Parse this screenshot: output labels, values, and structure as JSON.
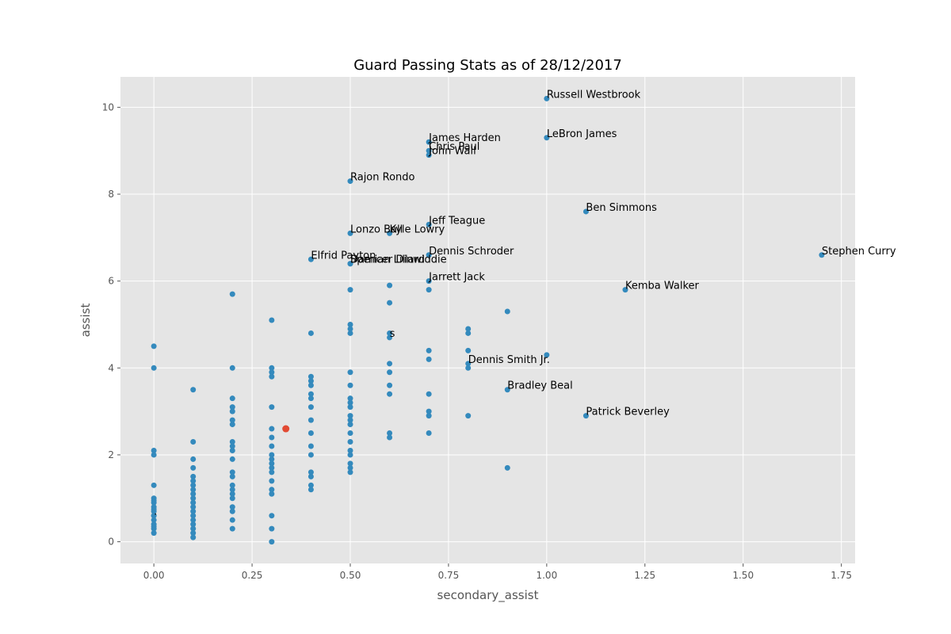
{
  "chart_data": {
    "type": "scatter",
    "title": "Guard Passing Stats as of 28/12/2017",
    "xlabel": "secondary_assist",
    "ylabel": "assist",
    "xlim": [
      -0.085,
      1.785
    ],
    "ylim": [
      -0.5,
      10.7
    ],
    "xticks": [
      0.0,
      0.25,
      0.5,
      0.75,
      1.0,
      1.25,
      1.5,
      1.75
    ],
    "xtick_labels": [
      "0.00",
      "0.25",
      "0.50",
      "0.75",
      "1.00",
      "1.25",
      "1.50",
      "1.75"
    ],
    "yticks": [
      0,
      2,
      4,
      6,
      8,
      10
    ],
    "ytick_labels": [
      "0",
      "2",
      "4",
      "6",
      "8",
      "10"
    ],
    "grid": true,
    "style": "ggplot",
    "colors": {
      "background": "#e5e5e5",
      "grid": "#ffffff",
      "point": "#348abd",
      "highlight": "#e24a33"
    },
    "labeled_points": [
      {
        "label": "Russell Westbrook",
        "x": 1.0,
        "y": 10.2
      },
      {
        "label": "LeBron James",
        "x": 1.0,
        "y": 9.3
      },
      {
        "label": "James Harden",
        "x": 0.7,
        "y": 9.2
      },
      {
        "label": "Chris Paul",
        "x": 0.7,
        "y": 9.0
      },
      {
        "label": "John Wall",
        "x": 0.7,
        "y": 8.9
      },
      {
        "label": "Rajon Rondo",
        "x": 0.5,
        "y": 8.3
      },
      {
        "label": "Ben Simmons",
        "x": 1.1,
        "y": 7.6
      },
      {
        "label": "Jeff Teague",
        "x": 0.7,
        "y": 7.3
      },
      {
        "label": "Lonzo Ball",
        "x": 0.5,
        "y": 7.1
      },
      {
        "label": "Kyle Lowry",
        "x": 0.6,
        "y": 7.1
      },
      {
        "label": "Elfrid Payton",
        "x": 0.4,
        "y": 6.5
      },
      {
        "label": "Dennis Schroder",
        "x": 0.7,
        "y": 6.6
      },
      {
        "label": "Stephen Curry",
        "x": 1.7,
        "y": 6.6
      },
      {
        "label": "Damian Lillard",
        "x": 0.5,
        "y": 6.4
      },
      {
        "label": "Spencer Dinwiddie",
        "x": 0.5,
        "y": 6.4
      },
      {
        "label": "Jarrett Jack",
        "x": 0.7,
        "y": 6.0
      },
      {
        "label": "Kemba Walker",
        "x": 1.2,
        "y": 5.8
      },
      {
        "label": "s",
        "x": 0.6,
        "y": 4.7
      },
      {
        "label": "Dennis Smith Jr.",
        "x": 0.8,
        "y": 4.1
      },
      {
        "label": "Bradley Beal",
        "x": 0.9,
        "y": 3.5
      },
      {
        "label": "Patrick Beverley",
        "x": 1.1,
        "y": 2.9
      },
      {
        "label": ".",
        "x": 0.0,
        "y": 0.6
      }
    ],
    "points": [
      [
        0.0,
        4.5
      ],
      [
        0.0,
        4.0
      ],
      [
        0.0,
        2.1
      ],
      [
        0.0,
        2.0
      ],
      [
        0.0,
        1.3
      ],
      [
        0.0,
        1.0
      ],
      [
        0.0,
        0.95
      ],
      [
        0.0,
        0.9
      ],
      [
        0.0,
        0.8
      ],
      [
        0.0,
        0.75
      ],
      [
        0.0,
        0.7
      ],
      [
        0.0,
        0.6
      ],
      [
        0.0,
        0.5
      ],
      [
        0.0,
        0.4
      ],
      [
        0.0,
        0.35
      ],
      [
        0.0,
        0.3
      ],
      [
        0.0,
        0.2
      ],
      [
        0.1,
        3.5
      ],
      [
        0.1,
        2.3
      ],
      [
        0.1,
        1.9
      ],
      [
        0.1,
        1.7
      ],
      [
        0.1,
        1.5
      ],
      [
        0.1,
        1.4
      ],
      [
        0.1,
        1.3
      ],
      [
        0.1,
        1.2
      ],
      [
        0.1,
        1.1
      ],
      [
        0.1,
        1.0
      ],
      [
        0.1,
        0.9
      ],
      [
        0.1,
        0.8
      ],
      [
        0.1,
        0.7
      ],
      [
        0.1,
        0.6
      ],
      [
        0.1,
        0.5
      ],
      [
        0.1,
        0.4
      ],
      [
        0.1,
        0.3
      ],
      [
        0.1,
        0.2
      ],
      [
        0.1,
        0.1
      ],
      [
        0.2,
        5.7
      ],
      [
        0.2,
        4.0
      ],
      [
        0.2,
        3.3
      ],
      [
        0.2,
        3.1
      ],
      [
        0.2,
        3.0
      ],
      [
        0.2,
        2.8
      ],
      [
        0.2,
        2.7
      ],
      [
        0.2,
        2.3
      ],
      [
        0.2,
        2.2
      ],
      [
        0.2,
        2.1
      ],
      [
        0.2,
        1.9
      ],
      [
        0.2,
        1.6
      ],
      [
        0.2,
        1.5
      ],
      [
        0.2,
        1.3
      ],
      [
        0.2,
        1.2
      ],
      [
        0.2,
        1.1
      ],
      [
        0.2,
        1.0
      ],
      [
        0.2,
        0.8
      ],
      [
        0.2,
        0.7
      ],
      [
        0.2,
        0.5
      ],
      [
        0.2,
        0.3
      ],
      [
        0.3,
        5.1
      ],
      [
        0.3,
        4.0
      ],
      [
        0.3,
        3.9
      ],
      [
        0.3,
        3.8
      ],
      [
        0.3,
        3.1
      ],
      [
        0.3,
        2.6
      ],
      [
        0.3,
        2.4
      ],
      [
        0.3,
        2.2
      ],
      [
        0.3,
        2.0
      ],
      [
        0.3,
        1.9
      ],
      [
        0.3,
        1.8
      ],
      [
        0.3,
        1.7
      ],
      [
        0.3,
        1.6
      ],
      [
        0.3,
        1.4
      ],
      [
        0.3,
        1.2
      ],
      [
        0.3,
        1.1
      ],
      [
        0.3,
        0.6
      ],
      [
        0.3,
        0.3
      ],
      [
        0.3,
        0.0
      ],
      [
        0.4,
        4.8
      ],
      [
        0.4,
        3.8
      ],
      [
        0.4,
        3.7
      ],
      [
        0.4,
        3.6
      ],
      [
        0.4,
        3.4
      ],
      [
        0.4,
        3.3
      ],
      [
        0.4,
        3.1
      ],
      [
        0.4,
        2.8
      ],
      [
        0.4,
        2.5
      ],
      [
        0.4,
        2.2
      ],
      [
        0.4,
        2.0
      ],
      [
        0.4,
        1.6
      ],
      [
        0.4,
        1.5
      ],
      [
        0.4,
        1.3
      ],
      [
        0.4,
        1.2
      ],
      [
        0.5,
        5.8
      ],
      [
        0.5,
        5.0
      ],
      [
        0.5,
        4.9
      ],
      [
        0.5,
        4.8
      ],
      [
        0.5,
        3.9
      ],
      [
        0.5,
        3.6
      ],
      [
        0.5,
        3.3
      ],
      [
        0.5,
        3.2
      ],
      [
        0.5,
        3.1
      ],
      [
        0.5,
        2.9
      ],
      [
        0.5,
        2.8
      ],
      [
        0.5,
        2.7
      ],
      [
        0.5,
        2.5
      ],
      [
        0.5,
        2.3
      ],
      [
        0.5,
        2.1
      ],
      [
        0.5,
        2.0
      ],
      [
        0.5,
        1.8
      ],
      [
        0.5,
        1.7
      ],
      [
        0.5,
        1.6
      ],
      [
        0.6,
        5.9
      ],
      [
        0.6,
        5.5
      ],
      [
        0.6,
        4.8
      ],
      [
        0.6,
        4.1
      ],
      [
        0.6,
        3.9
      ],
      [
        0.6,
        3.6
      ],
      [
        0.6,
        3.4
      ],
      [
        0.6,
        2.5
      ],
      [
        0.6,
        2.4
      ],
      [
        0.7,
        5.8
      ],
      [
        0.7,
        4.4
      ],
      [
        0.7,
        4.2
      ],
      [
        0.7,
        3.4
      ],
      [
        0.7,
        3.0
      ],
      [
        0.7,
        2.9
      ],
      [
        0.7,
        2.5
      ],
      [
        0.8,
        4.9
      ],
      [
        0.8,
        4.8
      ],
      [
        0.8,
        4.4
      ],
      [
        0.8,
        4.0
      ],
      [
        0.8,
        2.9
      ],
      [
        0.9,
        5.3
      ],
      [
        0.9,
        1.7
      ],
      [
        1.0,
        4.3
      ]
    ],
    "highlight_points": [
      [
        0.336,
        2.6
      ]
    ]
  }
}
